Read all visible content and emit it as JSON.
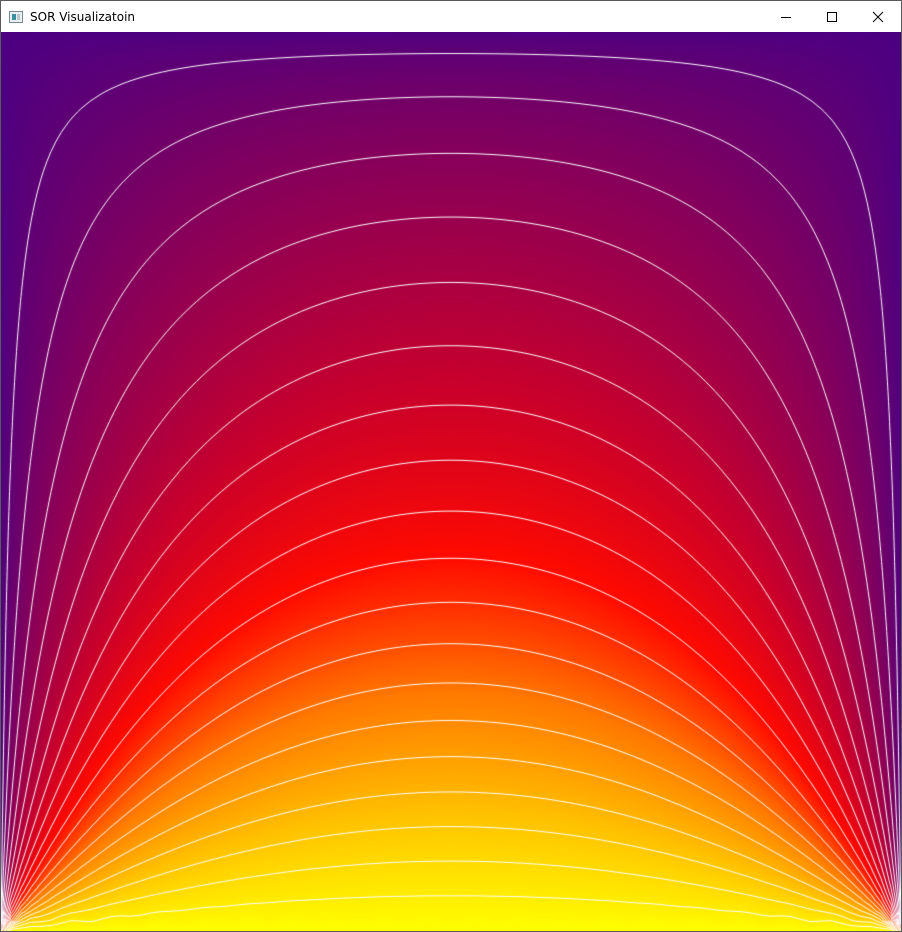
{
  "window": {
    "title": "SOR Visualizatoin",
    "app_icon": "application-icon",
    "controls": {
      "minimize": "minimize-icon",
      "maximize": "maximize-icon",
      "close": "close-icon"
    }
  },
  "visualization": {
    "type": "heatmap-with-contours",
    "colormap": [
      "#4b0082",
      "#8b0057",
      "#c8002c",
      "#ff0a00",
      "#ff7a00",
      "#ffc200",
      "#ffff00"
    ],
    "contour_color": "#ffffff"
  }
}
